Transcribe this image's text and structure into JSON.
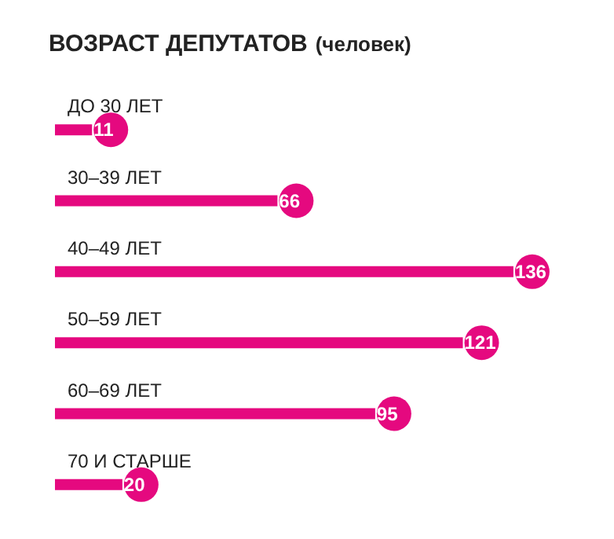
{
  "chart_data": {
    "type": "bar",
    "orientation": "horizontal",
    "title": "ВОЗРАСТ ДЕПУТАТОВ",
    "subtitle": "(человек)",
    "categories": [
      "ДО 30 ЛЕТ",
      "30–39 ЛЕТ",
      "40–49 ЛЕТ",
      "50–59 ЛЕТ",
      "60–69 ЛЕТ",
      "70 И СТАРШЕ"
    ],
    "values": [
      11,
      66,
      136,
      121,
      95,
      20
    ],
    "color": "#e5097f",
    "data_labels": true
  }
}
